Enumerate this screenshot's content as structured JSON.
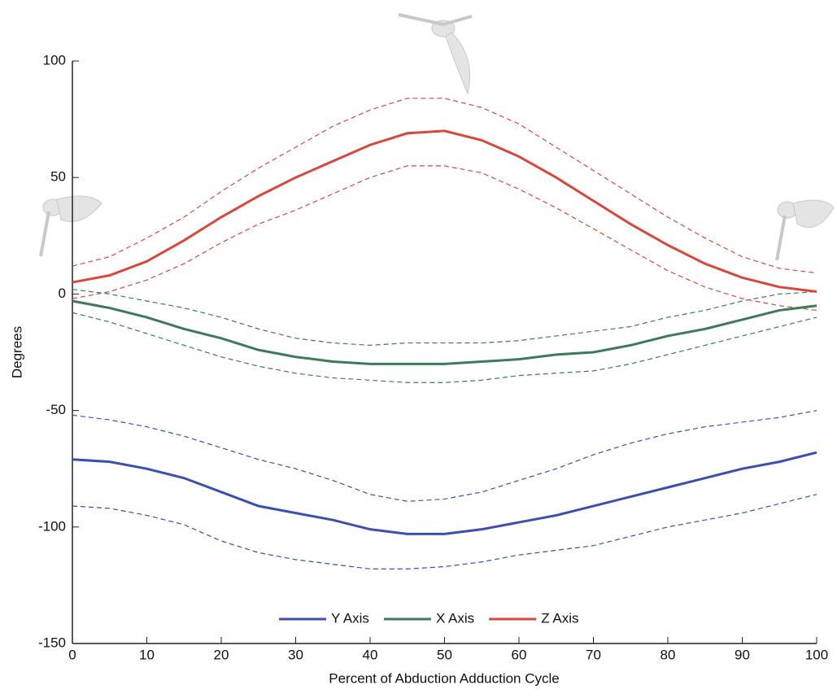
{
  "chart_data": {
    "type": "line",
    "xlabel": "Percent of Abduction Adduction Cycle",
    "ylabel": "Degrees",
    "x": [
      0,
      5,
      10,
      15,
      20,
      25,
      30,
      35,
      40,
      45,
      50,
      55,
      60,
      65,
      70,
      75,
      80,
      85,
      90,
      95,
      100
    ],
    "xlim": [
      0,
      100
    ],
    "xticks": [
      0,
      10,
      20,
      30,
      40,
      50,
      60,
      70,
      80,
      90,
      100
    ],
    "ylim": [
      -150,
      100
    ],
    "yticks": [
      -150,
      -100,
      -50,
      0,
      50,
      100
    ],
    "legend": "bottom",
    "series": [
      {
        "name": "Y Axis",
        "color": "#3a4fae",
        "values": [
          -71,
          -72,
          -75,
          -79,
          -85,
          -91,
          -94,
          -97,
          -101,
          -103,
          -103,
          -101,
          -98,
          -95,
          -91,
          -87,
          -83,
          -79,
          -75,
          -72,
          -68
        ],
        "upper": [
          -52,
          -54,
          -57,
          -61,
          -66,
          -71,
          -75,
          -80,
          -86,
          -89,
          -88,
          -85,
          -80,
          -75,
          -69,
          -64,
          -60,
          -57,
          -55,
          -53,
          -50
        ],
        "lower": [
          -91,
          -92,
          -95,
          -99,
          -106,
          -111,
          -114,
          -116,
          -118,
          -118,
          -117,
          -115,
          -112,
          -110,
          -108,
          -104,
          -100,
          -97,
          -94,
          -90,
          -86
        ]
      },
      {
        "name": "X Axis",
        "color": "#3d7a57",
        "values": [
          -3,
          -6,
          -10,
          -15,
          -19,
          -24,
          -27,
          -29,
          -30,
          -30,
          -30,
          -29,
          -28,
          -26,
          -25,
          -22,
          -18,
          -15,
          -11,
          -7,
          -5
        ],
        "upper": [
          2,
          0,
          -3,
          -6,
          -10,
          -15,
          -19,
          -21,
          -22,
          -21,
          -21,
          -21,
          -20,
          -18,
          -16,
          -14,
          -10,
          -7,
          -3,
          0,
          1
        ],
        "lower": [
          -8,
          -12,
          -17,
          -22,
          -27,
          -31,
          -34,
          -36,
          -37,
          -38,
          -38,
          -37,
          -35,
          -34,
          -33,
          -30,
          -26,
          -22,
          -18,
          -14,
          -10
        ]
      },
      {
        "name": "Z Axis",
        "color": "#d9473a",
        "values": [
          5,
          8,
          14,
          23,
          33,
          42,
          50,
          57,
          64,
          69,
          70,
          66,
          59,
          50,
          40,
          30,
          21,
          13,
          7,
          3,
          1
        ],
        "upper": [
          12,
          16,
          24,
          33,
          44,
          54,
          63,
          72,
          79,
          84,
          84,
          80,
          73,
          63,
          53,
          43,
          33,
          24,
          16,
          11,
          9
        ],
        "lower": [
          -2,
          1,
          6,
          13,
          22,
          30,
          36,
          43,
          50,
          55,
          55,
          52,
          45,
          37,
          28,
          19,
          10,
          3,
          -2,
          -5,
          -7
        ]
      }
    ]
  }
}
